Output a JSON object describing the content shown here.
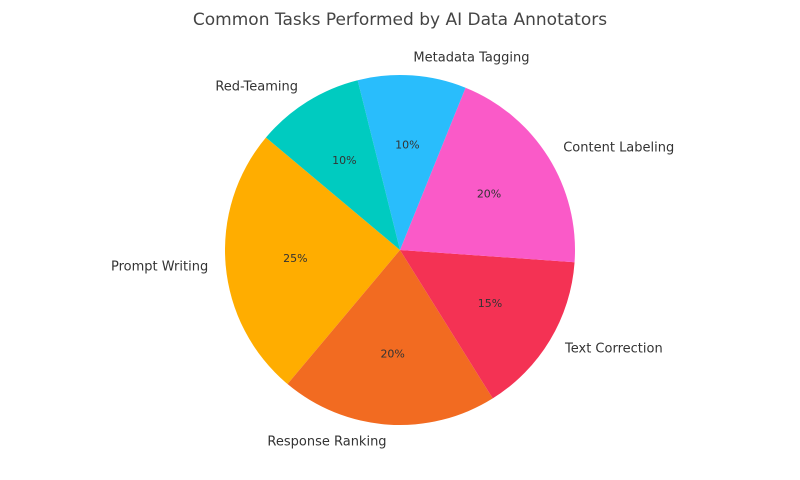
{
  "chart_data": {
    "type": "pie",
    "title": "Common Tasks Performed by AI Data Annotators",
    "categories": [
      "Prompt Writing",
      "Response Ranking",
      "Text Correction",
      "Content Labeling",
      "Metadata Tagging",
      "Red-Teaming"
    ],
    "values": [
      25,
      20,
      15,
      20,
      10,
      10
    ],
    "value_labels": [
      "25%",
      "20%",
      "15%",
      "20%",
      "10%",
      "10%"
    ],
    "colors": [
      "#ffad00",
      "#f26b21",
      "#f43254",
      "#fa5ac8",
      "#29bdfc",
      "#00cbc0"
    ],
    "start_angle": 140
  }
}
